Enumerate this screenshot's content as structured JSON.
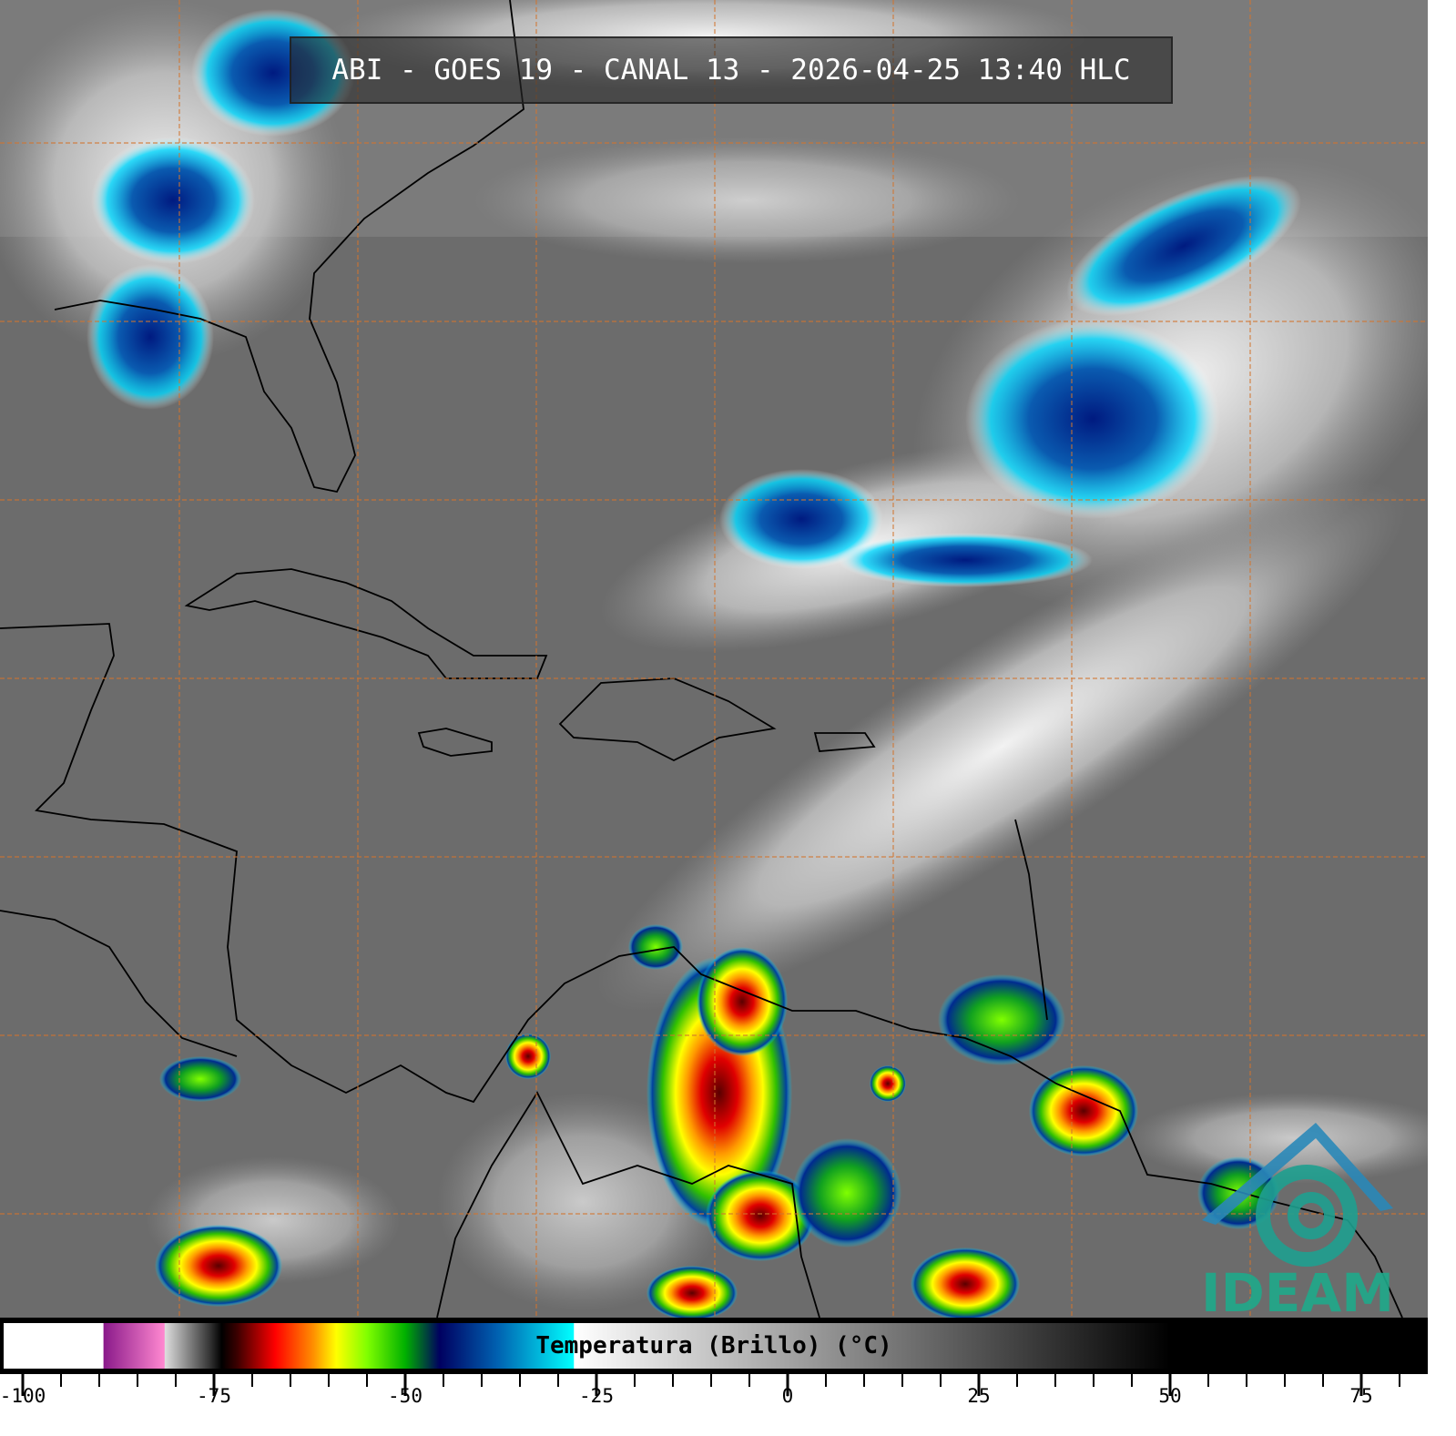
{
  "title": "ABI - GOES 19 - CANAL 13 - 2026-04-25 13:40 HLC",
  "logo": {
    "text": "IDEAM",
    "color": "#1fa98a"
  },
  "colorbar": {
    "label": "Temperatura (Brillo) (°C)",
    "range": [
      -103,
      84
    ],
    "ticks": [
      "-100",
      "-75",
      "-50",
      "-25",
      "0",
      "25",
      "50",
      "75"
    ],
    "tick_values": [
      -100,
      -75,
      -50,
      -25,
      0,
      25,
      50,
      75
    ],
    "stops": [
      {
        "t": -103,
        "color": "#ffffff"
      },
      {
        "t": -89.5,
        "color": "#ffffff"
      },
      {
        "t": -89.4,
        "color": "#8a1a8a"
      },
      {
        "t": -81.5,
        "color": "#ff88d0"
      },
      {
        "t": -81.4,
        "color": "#dddddd"
      },
      {
        "t": -75.5,
        "color": "#333333"
      },
      {
        "t": -74,
        "color": "#000000"
      },
      {
        "t": -72,
        "color": "#3a0000"
      },
      {
        "t": -67,
        "color": "#ff0000"
      },
      {
        "t": -62,
        "color": "#ff9000"
      },
      {
        "t": -59,
        "color": "#ffff00"
      },
      {
        "t": -55,
        "color": "#80ff00"
      },
      {
        "t": -50,
        "color": "#00b000"
      },
      {
        "t": -45.5,
        "color": "#000060"
      },
      {
        "t": -38,
        "color": "#0060b0"
      },
      {
        "t": -28,
        "color": "#00ffff"
      },
      {
        "t": -27.9,
        "color": "#ffffff"
      },
      {
        "t": 50,
        "color": "#000000"
      },
      {
        "t": 84,
        "color": "#000000"
      }
    ]
  },
  "colors": {
    "grid": "#d2752f",
    "coast": "#000000",
    "background": "#6e6e6e"
  }
}
